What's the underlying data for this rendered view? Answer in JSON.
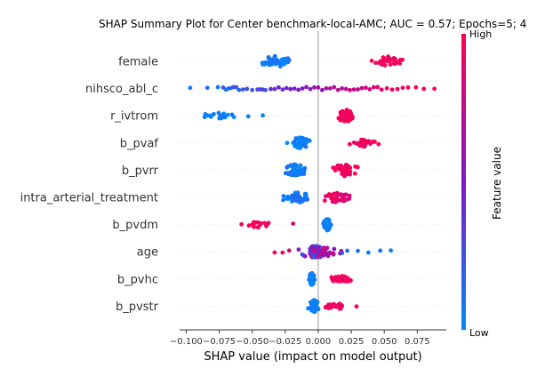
{
  "chart_data": {
    "type": "scatter",
    "title": "SHAP Summary Plot for Center benchmark-local-AMC; AUC = 0.57; Epochs=5; 4",
    "xlabel": "SHAP value (impact on model output)",
    "ylabel": "",
    "xlim": [
      -0.105,
      0.097
    ],
    "x_ticks": [
      -0.1,
      -0.075,
      -0.05,
      -0.025,
      0.0,
      0.025,
      0.05,
      0.075
    ],
    "x_tick_labels": [
      "−0.100",
      "−0.075",
      "−0.050",
      "−0.025",
      "0.000",
      "0.025",
      "0.050",
      "0.075"
    ],
    "grid": false,
    "zero_line": true,
    "colorbar": {
      "label": "Feature value",
      "high_label": "High",
      "low_label": "Low",
      "low_color": "#008afb",
      "mid_color": "#7e17c8",
      "high_color": "#ff0051"
    },
    "features": [
      {
        "name": "female",
        "clusters": [
          {
            "center": -0.031,
            "spread": 0.01,
            "count": 45,
            "value_range": [
              0.0,
              0.12
            ],
            "jitter": 0.9
          },
          {
            "center": 0.053,
            "spread": 0.011,
            "count": 32,
            "value_range": [
              0.88,
              1.0
            ],
            "jitter": 0.8
          }
        ]
      },
      {
        "name": "nihsco_abl_c",
        "points": [
          [
            -0.097,
            0.05
          ],
          [
            -0.084,
            0.1
          ],
          [
            -0.076,
            0.05
          ],
          [
            -0.072,
            0.2
          ],
          [
            -0.07,
            0.15
          ],
          [
            -0.068,
            0.1
          ],
          [
            -0.066,
            0.2
          ],
          [
            -0.064,
            0.25
          ],
          [
            -0.062,
            0.2
          ],
          [
            -0.06,
            0.15
          ],
          [
            -0.057,
            0.2
          ],
          [
            -0.054,
            0.3
          ],
          [
            -0.05,
            0.2
          ],
          [
            -0.046,
            0.3
          ],
          [
            -0.044,
            0.25
          ],
          [
            -0.042,
            0.35
          ],
          [
            -0.04,
            0.2
          ],
          [
            -0.036,
            0.4
          ],
          [
            -0.033,
            0.35
          ],
          [
            -0.03,
            0.45
          ],
          [
            -0.027,
            0.4
          ],
          [
            -0.024,
            0.45
          ],
          [
            -0.021,
            0.5
          ],
          [
            -0.018,
            0.45
          ],
          [
            -0.015,
            0.55
          ],
          [
            -0.012,
            0.5
          ],
          [
            -0.009,
            0.6
          ],
          [
            -0.006,
            0.55
          ],
          [
            -0.003,
            0.6
          ],
          [
            0.0,
            0.65
          ],
          [
            0.003,
            0.6
          ],
          [
            0.006,
            0.65
          ],
          [
            0.009,
            0.7
          ],
          [
            0.012,
            0.7
          ],
          [
            0.015,
            0.75
          ],
          [
            0.018,
            0.7
          ],
          [
            0.021,
            0.75
          ],
          [
            0.024,
            0.8
          ],
          [
            0.027,
            0.75
          ],
          [
            0.03,
            0.8
          ],
          [
            0.033,
            0.75
          ],
          [
            0.036,
            0.85
          ],
          [
            0.039,
            0.8
          ],
          [
            0.042,
            0.85
          ],
          [
            0.045,
            0.9
          ],
          [
            0.048,
            0.85
          ],
          [
            0.052,
            0.9
          ],
          [
            0.056,
            0.9
          ],
          [
            0.06,
            0.95
          ],
          [
            0.064,
            0.9
          ],
          [
            0.068,
            0.95
          ],
          [
            0.074,
            0.95
          ],
          [
            0.08,
            1.0
          ],
          [
            0.088,
            1.0
          ]
        ],
        "jitter": 0.25
      },
      {
        "name": "r_ivtrom",
        "clusters": [
          {
            "center": -0.077,
            "spread": 0.011,
            "count": 18,
            "value_range": [
              0.0,
              0.1
            ],
            "jitter": 0.5
          },
          {
            "center": 0.021,
            "spread": 0.006,
            "count": 60,
            "value_range": [
              0.9,
              1.0
            ],
            "jitter": 1.0
          }
        ],
        "extra_points": [
          [
            -0.053,
            0.05
          ],
          [
            -0.042,
            0.05
          ]
        ]
      },
      {
        "name": "b_pvaf",
        "clusters": [
          {
            "center": -0.014,
            "spread": 0.005,
            "count": 50,
            "value_range": [
              0.0,
              0.12
            ],
            "jitter": 1.0
          },
          {
            "center": 0.035,
            "spread": 0.007,
            "count": 28,
            "value_range": [
              0.85,
              1.0
            ],
            "jitter": 0.6
          }
        ]
      },
      {
        "name": "b_pvrr",
        "clusters": [
          {
            "center": -0.017,
            "spread": 0.007,
            "count": 45,
            "value_range": [
              0.0,
              0.12
            ],
            "jitter": 1.0
          },
          {
            "center": 0.02,
            "spread": 0.008,
            "count": 40,
            "value_range": [
              0.88,
              1.0
            ],
            "jitter": 1.0
          }
        ]
      },
      {
        "name": "intra_arterial_treatment",
        "clusters": [
          {
            "center": -0.015,
            "spread": 0.01,
            "count": 40,
            "value_range": [
              0.0,
              0.15
            ],
            "jitter": 0.8
          },
          {
            "center": 0.014,
            "spread": 0.011,
            "count": 40,
            "value_range": [
              0.82,
              1.0
            ],
            "jitter": 0.8
          }
        ]
      },
      {
        "name": "b_pvdm",
        "clusters": [
          {
            "center": -0.045,
            "spread": 0.009,
            "count": 16,
            "value_range": [
              0.9,
              1.0
            ],
            "jitter": 0.5
          },
          {
            "center": 0.007,
            "spread": 0.002,
            "count": 55,
            "value_range": [
              0.0,
              0.1
            ],
            "jitter": 1.0
          }
        ],
        "extra_points": [
          [
            -0.019,
            0.85
          ]
        ]
      },
      {
        "name": "age",
        "clusters": [
          {
            "center": -0.001,
            "spread": 0.012,
            "count": 80,
            "value_range": [
              0.2,
              0.9
            ],
            "jitter": 1.0
          }
        ],
        "extra_points": [
          [
            -0.033,
            0.95
          ],
          [
            -0.027,
            0.9
          ],
          [
            -0.022,
            0.85
          ],
          [
            0.018,
            0.2
          ],
          [
            0.022,
            0.15
          ],
          [
            0.03,
            0.1
          ],
          [
            0.038,
            0.05
          ],
          [
            0.047,
            0.1
          ],
          [
            0.055,
            0.05
          ]
        ]
      },
      {
        "name": "b_pvhc",
        "clusters": [
          {
            "center": -0.005,
            "spread": 0.002,
            "count": 60,
            "value_range": [
              0.0,
              0.1
            ],
            "jitter": 1.0
          },
          {
            "center": 0.018,
            "spread": 0.009,
            "count": 30,
            "value_range": [
              0.88,
              1.0
            ],
            "jitter": 0.5
          }
        ]
      },
      {
        "name": "b_pvstr",
        "clusters": [
          {
            "center": -0.003,
            "spread": 0.003,
            "count": 60,
            "value_range": [
              0.0,
              0.1
            ],
            "jitter": 1.0
          },
          {
            "center": 0.013,
            "spread": 0.007,
            "count": 28,
            "value_range": [
              0.85,
              1.0
            ],
            "jitter": 0.5
          }
        ],
        "extra_points": [
          [
            0.029,
            0.95
          ]
        ]
      }
    ]
  }
}
